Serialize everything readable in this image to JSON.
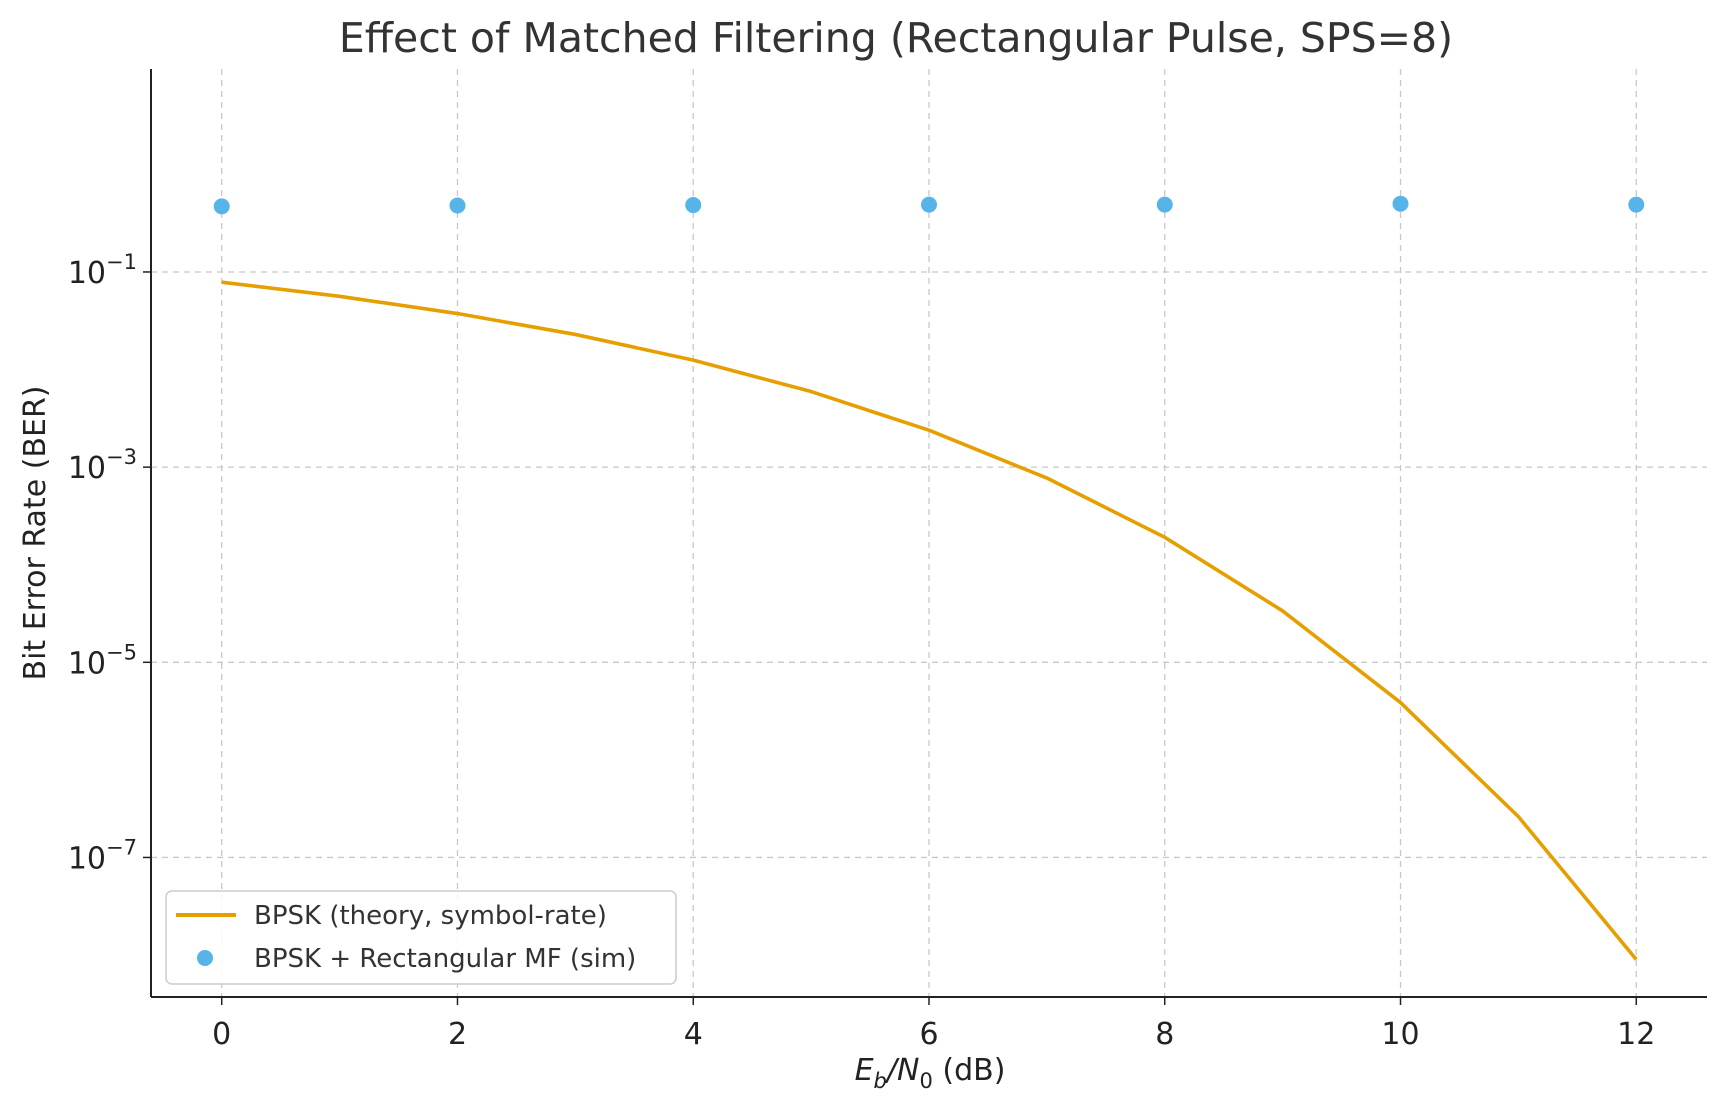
{
  "chart_data": {
    "type": "line",
    "title": "Effect of Matched Filtering (Rectangular Pulse, SPS=8)",
    "xlabel": {
      "main": "E",
      "sub1": "b",
      "mid": "/N",
      "sub2": "0",
      "tail": " (dB)"
    },
    "ylabel": "Bit Error Rate (BER)",
    "xlim": [
      -0.6,
      12.6
    ],
    "ylim_log10": [
      -8.43,
      1.08
    ],
    "y_scale": "log",
    "grid": true,
    "legend_position": "lower-left",
    "xticks": [
      {
        "value": 0,
        "label": "0"
      },
      {
        "value": 2,
        "label": "2"
      },
      {
        "value": 4,
        "label": "4"
      },
      {
        "value": 6,
        "label": "6"
      },
      {
        "value": 8,
        "label": "8"
      },
      {
        "value": 10,
        "label": "10"
      },
      {
        "value": 12,
        "label": "12"
      }
    ],
    "yticks": [
      {
        "exp": -1,
        "base": "10",
        "sup": "−1"
      },
      {
        "exp": -3,
        "base": "10",
        "sup": "−3"
      },
      {
        "exp": -5,
        "base": "10",
        "sup": "−5"
      },
      {
        "exp": -7,
        "base": "10",
        "sup": "−7"
      }
    ],
    "series": [
      {
        "name": "BPSK (theory, symbol-rate)",
        "kind": "line",
        "color": "#E69F00",
        "x": [
          0,
          1,
          2,
          3,
          4,
          5,
          6,
          7,
          8,
          9,
          10,
          11,
          12
        ],
        "y": [
          0.0786,
          0.0563,
          0.0375,
          0.0229,
          0.0125,
          0.00595,
          0.00239,
          0.000773,
          0.000191,
          3.36e-05,
          3.87e-06,
          2.62e-07,
          9.01e-09
        ]
      },
      {
        "name": "BPSK + Rectangular MF (sim)",
        "kind": "scatter",
        "color": "#56B4E9",
        "x": [
          0,
          2,
          4,
          6,
          8,
          10,
          12
        ],
        "y": [
          0.47,
          0.48,
          0.485,
          0.49,
          0.49,
          0.5,
          0.49
        ]
      }
    ]
  }
}
